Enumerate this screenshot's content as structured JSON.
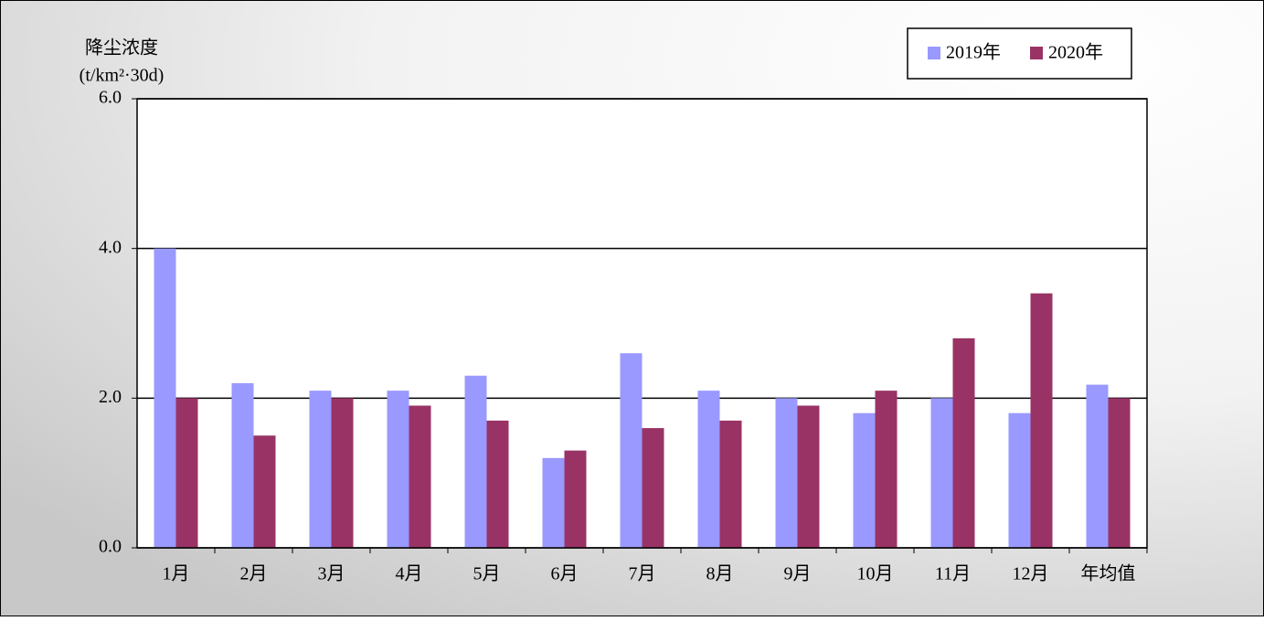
{
  "chart_data": {
    "type": "bar",
    "y_label_line1": "降尘浓度",
    "y_label_line2": "(t/km²·30d)",
    "categories": [
      "1月",
      "2月",
      "3月",
      "4月",
      "5月",
      "6月",
      "7月",
      "8月",
      "9月",
      "10月",
      "11月",
      "12月",
      "年均值"
    ],
    "series": [
      {
        "name": "2019年",
        "color": "#9999ff",
        "values": [
          4.0,
          2.2,
          2.1,
          2.1,
          2.3,
          1.2,
          2.6,
          2.1,
          2.0,
          1.8,
          2.0,
          1.8,
          2.18
        ]
      },
      {
        "name": "2020年",
        "color": "#993366",
        "values": [
          2.0,
          1.5,
          2.0,
          1.9,
          1.7,
          1.3,
          1.6,
          1.7,
          1.9,
          2.1,
          2.8,
          3.4,
          2.0
        ]
      }
    ],
    "ylim": [
      0,
      6
    ],
    "yticks": [
      {
        "value": 0,
        "label": "0.0"
      },
      {
        "value": 2,
        "label": "2.0"
      },
      {
        "value": 4,
        "label": "4.0"
      },
      {
        "value": 6,
        "label": "6.0"
      }
    ],
    "grid": true
  }
}
